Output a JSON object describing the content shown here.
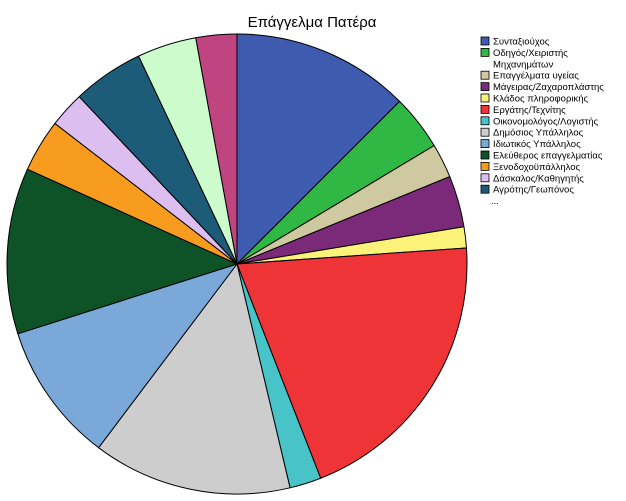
{
  "chart_data": {
    "type": "pie",
    "title": "Επάγγελμα Πατέρα",
    "start_angle": "12 o'clock",
    "direction": "clockwise",
    "slices": [
      {
        "label": "Συνταξιούχος",
        "value": 13.5,
        "color": "#3f5bb0"
      },
      {
        "label": "Οδηγός/Χειριστής Μηχανημάτων",
        "value": 4.2,
        "color": "#2fb844"
      },
      {
        "label": "Επαγγέλματα υγείας",
        "value": 2.6,
        "color": "#cec9a0"
      },
      {
        "label": "Μάγειρας/Ζαχαροπλάστης",
        "value": 3.9,
        "color": "#7a2a78"
      },
      {
        "label": "Κλάδος πληροφορικής",
        "value": 1.6,
        "color": "#fbf379"
      },
      {
        "label": "Εργάτης/Τεχνίτης",
        "value": 21.8,
        "color": "#ef3438"
      },
      {
        "label": "Οικονομολόγος/Λογιστής",
        "value": 2.4,
        "color": "#48c4c8"
      },
      {
        "label": "Δημόσιος Υπάλληλος",
        "value": 15.1,
        "color": "#cdcdcd"
      },
      {
        "label": "Ιδιωτικός Υπάλληλος",
        "value": 10.6,
        "color": "#7aa8d8"
      },
      {
        "label": "Ελεύθερος επαγγελματίας",
        "value": 12.6,
        "color": "#0e5228"
      },
      {
        "label": "Ξενοδοχοϋπάλληλος",
        "value": 4.0,
        "color": "#f89c1f"
      },
      {
        "label": "Δάσκαλος/Καθηγητής",
        "value": 2.7,
        "color": "#dcbef0"
      },
      {
        "label": "Αγρότης/Γεωπόνος",
        "value": 5.4,
        "color": "#1c5c78"
      },
      {
        "value": 4.5,
        "color": "#ccfccc"
      },
      {
        "value": 3.1,
        "color": "#c04480"
      }
    ],
    "legend": {
      "placement": "top-right",
      "more_indicator": "..."
    }
  }
}
